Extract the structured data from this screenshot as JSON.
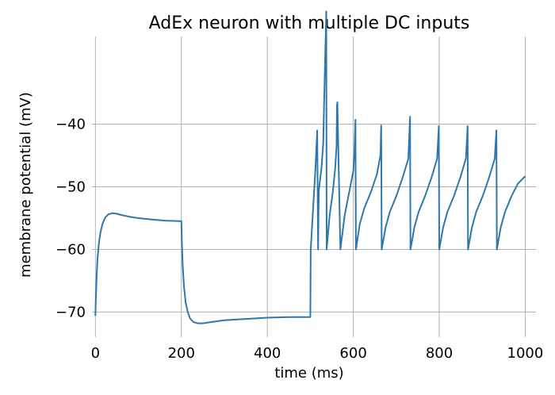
{
  "chart_data": {
    "type": "line",
    "title": "AdEx neuron with multiple DC inputs",
    "xlabel": "time (ms)",
    "ylabel": "membrane potential (mV)",
    "xlim": [
      -8,
      1025
    ],
    "ylim": [
      -74,
      -26
    ],
    "xticks": [
      0,
      200,
      400,
      600,
      800,
      1000
    ],
    "yticks": [
      -70,
      -60,
      -50,
      -40
    ],
    "xtick_labels": [
      "0",
      "200",
      "400",
      "600",
      "800",
      "1000"
    ],
    "ytick_labels": [
      "−70",
      "−60",
      "−50",
      "−40"
    ],
    "grid": true,
    "colors": {
      "series": "#2e77ad",
      "grid": "#b0b0b0"
    },
    "series": [
      {
        "x": [
          0,
          1,
          3,
          5,
          8,
          12,
          17,
          23,
          30,
          40,
          50,
          60,
          80,
          100,
          130,
          160,
          200,
          201,
          203,
          206,
          210,
          215,
          220,
          228,
          238,
          250,
          270,
          300,
          350,
          400,
          450,
          500,
          501,
          512,
          516,
          518,
          519,
          520,
          526,
          530,
          532,
          535,
          537,
          538,
          545,
          552,
          558,
          561,
          562,
          563,
          570,
          580,
          590,
          600,
          603,
          605,
          606,
          615,
          625,
          640,
          655,
          663,
          665,
          666,
          675,
          685,
          700,
          715,
          728,
          732,
          733,
          742,
          752,
          767,
          782,
          795,
          799,
          800,
          809,
          819,
          834,
          849,
          862,
          866,
          867,
          876,
          886,
          901,
          916,
          929,
          933,
          934,
          943,
          953,
          968,
          983,
          1000
        ],
        "values": [
          -70.6,
          -67.8,
          -64.0,
          -61.5,
          -59.0,
          -57.2,
          -55.8,
          -54.9,
          -54.4,
          -54.2,
          -54.3,
          -54.5,
          -54.8,
          -55.0,
          -55.2,
          -55.4,
          -55.5,
          -58.5,
          -62.5,
          -65.8,
          -68.5,
          -70.0,
          -71.0,
          -71.6,
          -71.8,
          -71.8,
          -71.6,
          -71.3,
          -71.1,
          -70.9,
          -70.8,
          -70.8,
          -60.0,
          -47.0,
          -41.0,
          -60.0,
          -54.0,
          -50.5,
          -47.0,
          -43.0,
          -37.0,
          -28.0,
          -22.0,
          -60.0,
          -54.5,
          -51.0,
          -47.0,
          -43.5,
          -37.0,
          -36.5,
          -60.0,
          -54.5,
          -51.0,
          -47.5,
          -44.0,
          -39.3,
          -60.0,
          -56.0,
          -53.5,
          -51.0,
          -48.0,
          -45.0,
          -40.2,
          -60.0,
          -56.5,
          -54.0,
          -51.5,
          -48.5,
          -45.5,
          -38.8,
          -60.0,
          -56.5,
          -54.0,
          -51.5,
          -48.5,
          -45.5,
          -40.3,
          -60.0,
          -56.5,
          -54.0,
          -51.5,
          -48.5,
          -45.5,
          -40.3,
          -60.0,
          -56.5,
          -54.0,
          -51.5,
          -48.5,
          -45.5,
          -41.0,
          -60.0,
          -56.5,
          -54.0,
          -51.5,
          -49.5,
          -48.3
        ]
      }
    ]
  }
}
